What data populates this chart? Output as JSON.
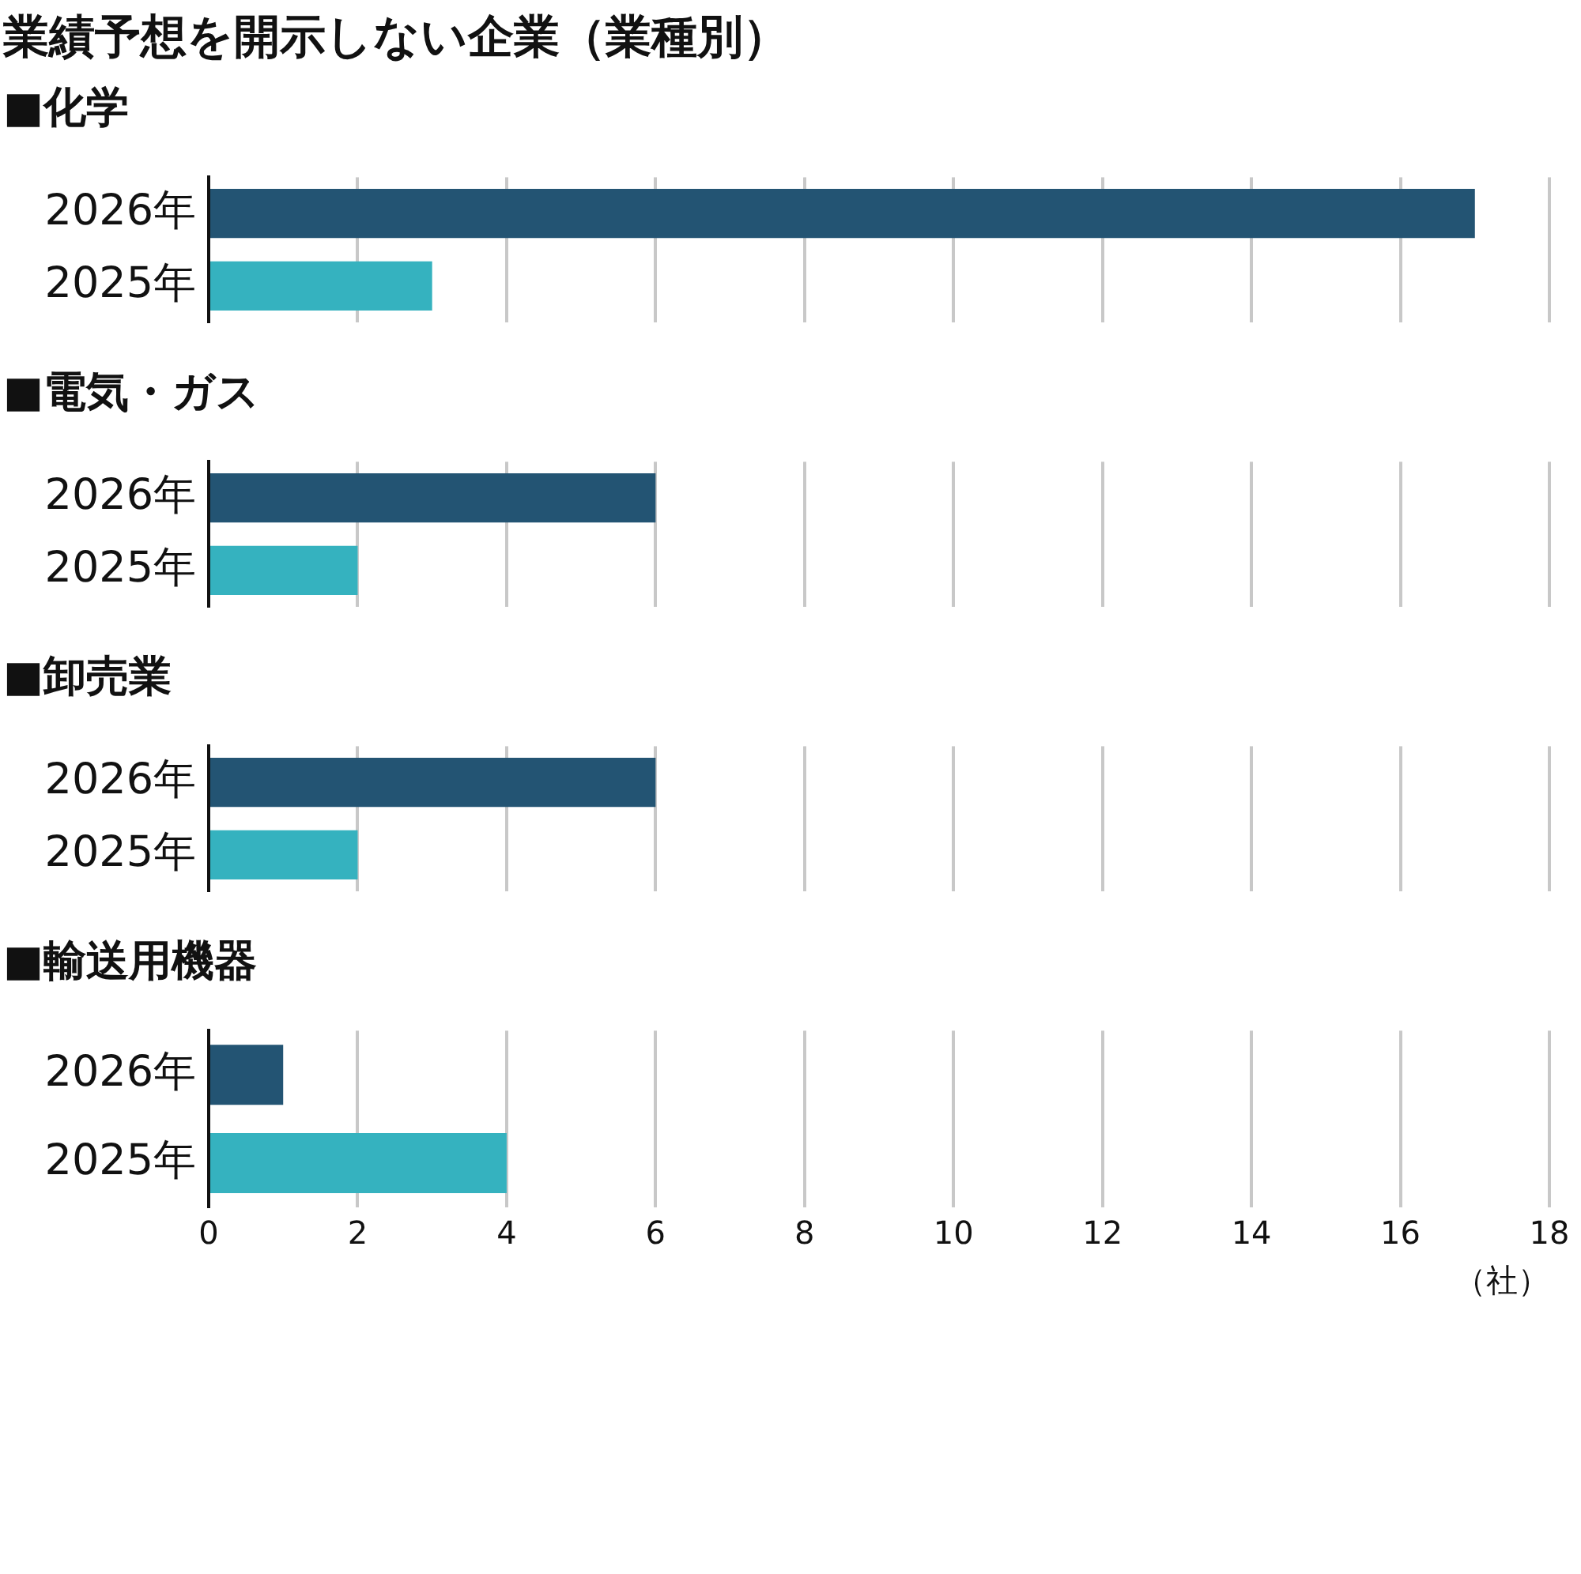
{
  "chart_data": [
    {
      "type": "bar",
      "orientation": "horizontal",
      "title": "業績予想を開示しない企業（業種別）",
      "subtitle": "■化学",
      "categories": [
        "2026年",
        "2025年"
      ],
      "values": [
        17,
        3
      ],
      "colors": [
        "#235473",
        "#35b2bf"
      ],
      "xlim": [
        0,
        18
      ],
      "xticks": [
        0,
        2,
        4,
        6,
        8,
        10,
        12,
        14,
        16,
        18
      ],
      "grid": "x",
      "tick_labels": "y"
    },
    {
      "type": "bar",
      "orientation": "horizontal",
      "title": "■電気・ガス",
      "categories": [
        "2026年",
        "2025年"
      ],
      "values": [
        6,
        2
      ],
      "colors": [
        "#235473",
        "#35b2bf"
      ],
      "xlim": [
        0,
        18
      ],
      "xticks": [
        0,
        2,
        4,
        6,
        8,
        10,
        12,
        14,
        16,
        18
      ],
      "grid": "x",
      "tick_labels": "y"
    },
    {
      "type": "bar",
      "orientation": "horizontal",
      "title": "■卸売業",
      "categories": [
        "2026年",
        "2025年"
      ],
      "values": [
        6,
        2
      ],
      "colors": [
        "#235473",
        "#35b2bf"
      ],
      "xlim": [
        0,
        18
      ],
      "xticks": [
        0,
        2,
        4,
        6,
        8,
        10,
        12,
        14,
        16,
        18
      ],
      "grid": "x",
      "tick_labels": "y"
    },
    {
      "type": "bar",
      "orientation": "horizontal",
      "title": "■輸送用機器",
      "categories": [
        "2026年",
        "2025年"
      ],
      "values": [
        1,
        4
      ],
      "colors": [
        "#235473",
        "#35b2bf"
      ],
      "xlim": [
        0,
        18
      ],
      "xticks": [
        0,
        2,
        4,
        6,
        8,
        10,
        12,
        14,
        16,
        18
      ],
      "grid": "x",
      "xlabel": "（社）"
    }
  ]
}
